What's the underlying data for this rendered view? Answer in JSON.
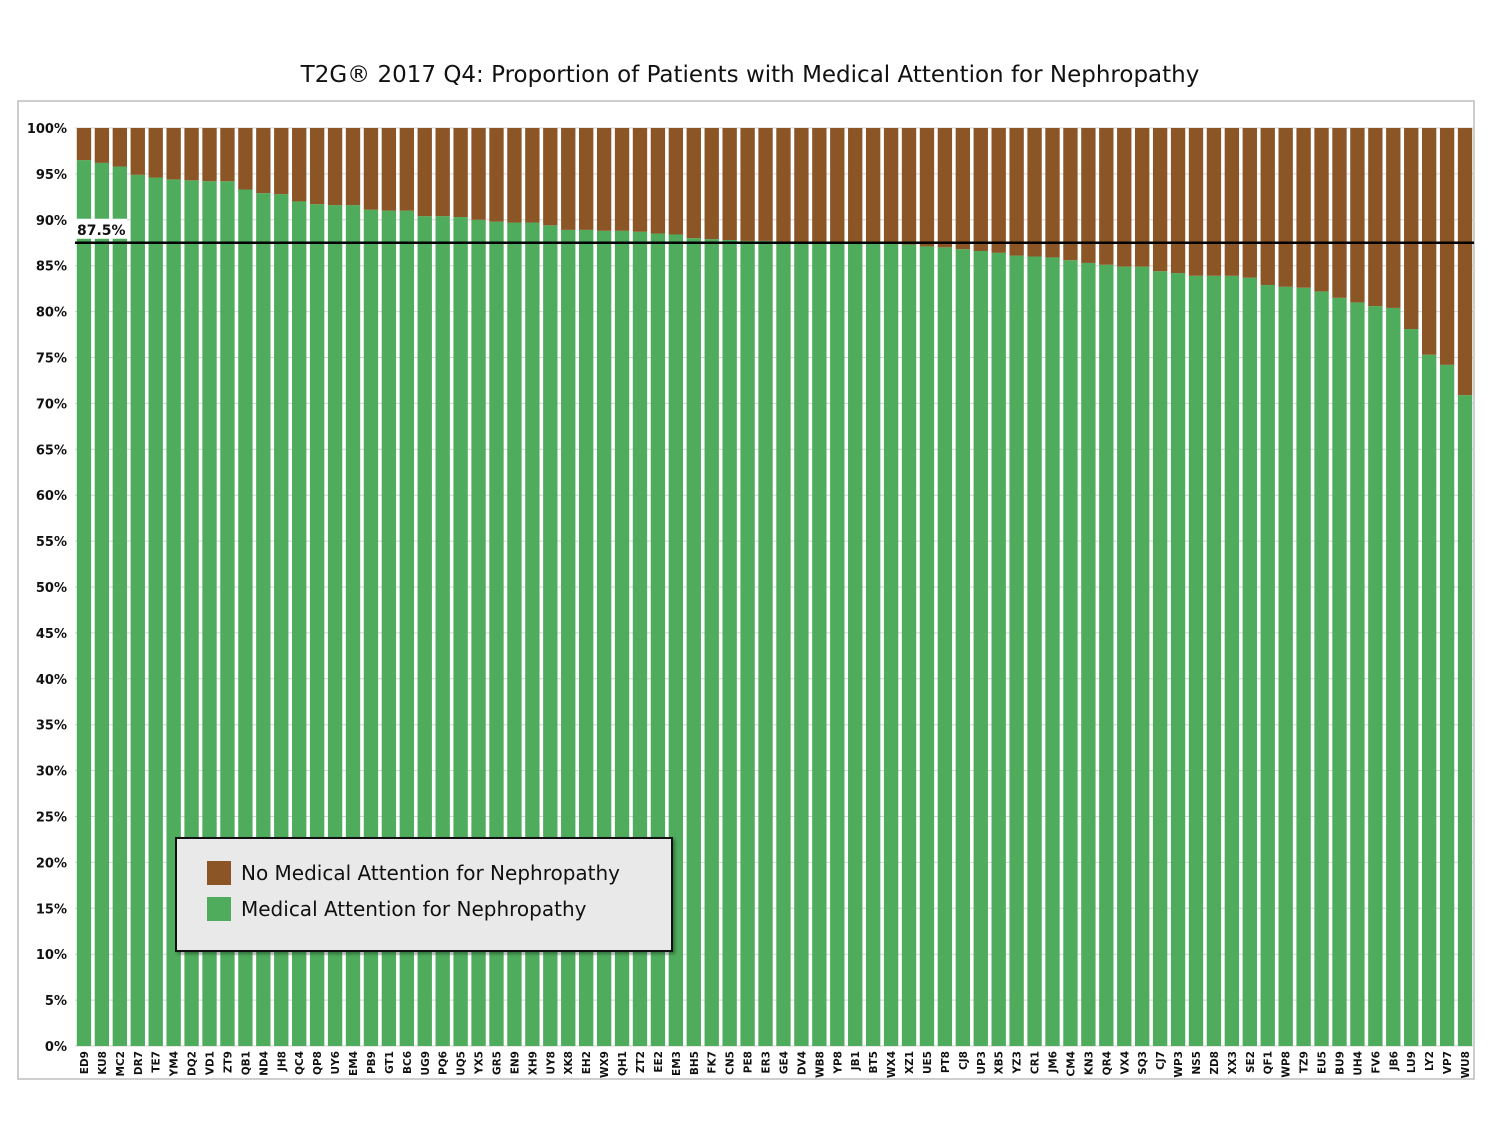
{
  "colors": {
    "attention": "#4eac5c",
    "no_attention": "#8b5526",
    "reference_line": "#000000"
  },
  "chart_data": {
    "type": "bar",
    "stacked": true,
    "title": "T2G® 2017 Q4: Proportion of Patients with Medical Attention for Nephropathy",
    "xlabel": "",
    "ylabel": "",
    "ylim": [
      0,
      100
    ],
    "y_ticks": [
      "0%",
      "5%",
      "10%",
      "15%",
      "20%",
      "25%",
      "30%",
      "35%",
      "40%",
      "45%",
      "50%",
      "55%",
      "60%",
      "65%",
      "70%",
      "75%",
      "80%",
      "85%",
      "90%",
      "95%",
      "100%"
    ],
    "reference_line": {
      "value": 87.5,
      "label": "87.5%"
    },
    "legend_position": "bottom-left",
    "categories": [
      "ED9",
      "KU8",
      "MC2",
      "DR7",
      "TE7",
      "YM4",
      "DQ2",
      "VD1",
      "ZT9",
      "QB1",
      "ND4",
      "JH8",
      "QC4",
      "QP8",
      "UY6",
      "EM4",
      "PB9",
      "GT1",
      "BC6",
      "UG9",
      "PQ6",
      "UQ5",
      "YX5",
      "GR5",
      "EN9",
      "XH9",
      "UY8",
      "XK8",
      "EH2",
      "WX9",
      "QH1",
      "ZT2",
      "EE2",
      "EM3",
      "BH5",
      "FK7",
      "CN5",
      "PE8",
      "ER3",
      "GE4",
      "DV4",
      "WB8",
      "YP8",
      "JB1",
      "BT5",
      "WX4",
      "XZ1",
      "UE5",
      "PT8",
      "CJ8",
      "UP3",
      "XB5",
      "YZ3",
      "CR1",
      "JM6",
      "CM4",
      "KN3",
      "QR4",
      "VX4",
      "SQ3",
      "CJ7",
      "WP3",
      "NS5",
      "ZD8",
      "XX3",
      "SE2",
      "QF1",
      "WP8",
      "TZ9",
      "EU5",
      "BU9",
      "UH4",
      "FV6",
      "JB6",
      "LU9",
      "LY2",
      "VP7",
      "WU8"
    ],
    "series": [
      {
        "name": "Medical Attention for Nephropathy",
        "values": [
          96.5,
          96.2,
          95.8,
          94.9,
          94.6,
          94.4,
          94.3,
          94.2,
          94.2,
          93.3,
          92.9,
          92.8,
          92.0,
          91.7,
          91.6,
          91.6,
          91.1,
          91.0,
          91.0,
          90.4,
          90.4,
          90.3,
          90.0,
          89.8,
          89.7,
          89.7,
          89.4,
          88.9,
          88.9,
          88.8,
          88.8,
          88.7,
          88.5,
          88.4,
          88.0,
          87.9,
          87.8,
          87.7,
          87.7,
          87.6,
          87.6,
          87.5,
          87.5,
          87.5,
          87.4,
          87.4,
          87.3,
          87.1,
          87.0,
          86.8,
          86.6,
          86.4,
          86.1,
          86.0,
          85.9,
          85.6,
          85.3,
          85.1,
          84.9,
          84.9,
          84.4,
          84.2,
          83.9,
          83.9,
          83.9,
          83.7,
          82.9,
          82.7,
          82.6,
          82.2,
          81.5,
          81.0,
          80.6,
          80.4,
          78.1,
          75.3,
          74.2,
          70.9
        ]
      },
      {
        "name": "No Medical Attention for Nephropathy",
        "values": [
          3.5,
          3.8,
          4.2,
          5.1,
          5.4,
          5.6,
          5.7,
          5.8,
          5.8,
          6.7,
          7.1,
          7.2,
          8.0,
          8.3,
          8.4,
          8.4,
          8.9,
          9.0,
          9.0,
          9.6,
          9.6,
          9.7,
          10.0,
          10.2,
          10.3,
          10.3,
          10.6,
          11.1,
          11.1,
          11.2,
          11.2,
          11.3,
          11.5,
          11.6,
          12.0,
          12.1,
          12.2,
          12.3,
          12.3,
          12.4,
          12.4,
          12.5,
          12.5,
          12.5,
          12.6,
          12.6,
          12.7,
          12.9,
          13.0,
          13.2,
          13.4,
          13.6,
          13.9,
          14.0,
          14.1,
          14.4,
          14.7,
          14.9,
          15.1,
          15.1,
          15.6,
          15.8,
          16.1,
          16.1,
          16.1,
          16.3,
          17.1,
          17.3,
          17.4,
          17.8,
          18.5,
          19.0,
          19.4,
          19.6,
          21.9,
          24.7,
          25.8,
          29.1
        ]
      }
    ]
  },
  "legend": {
    "items": [
      {
        "label": "No Medical Attention for Nephropathy",
        "color": "#8b5526"
      },
      {
        "label": "Medical Attention for Nephropathy",
        "color": "#4eac5c"
      }
    ]
  }
}
